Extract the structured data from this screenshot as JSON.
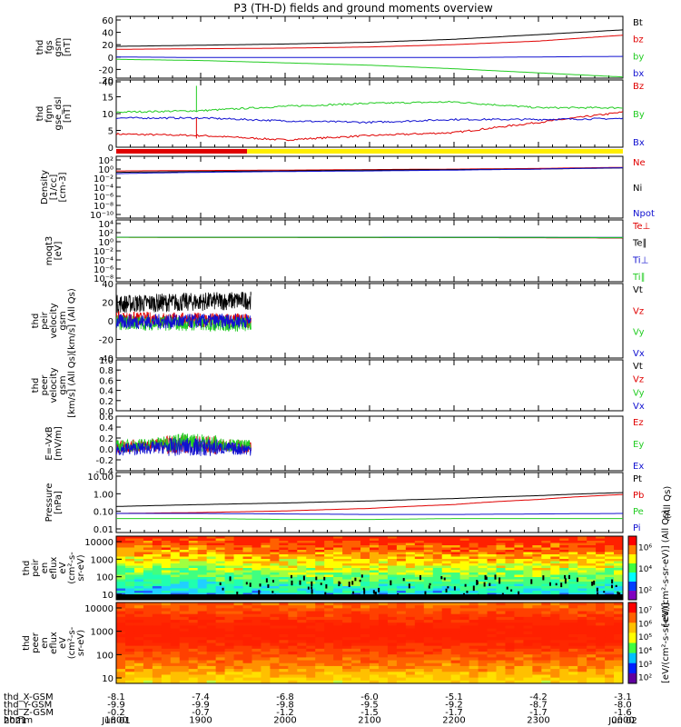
{
  "title": "P3 (TH-D) fields and ground moments overview",
  "colors": {
    "black": "#000000",
    "red": "#e00000",
    "green": "#22cc22",
    "blue": "#1010d0",
    "purple": "#8000c0",
    "yellow": "#ffee00"
  },
  "chart_data": [
    {
      "id": "fgs",
      "type": "line",
      "ylabel": [
        "thd",
        "fgs",
        "gsm",
        "[nT]"
      ],
      "yticks": [
        "60",
        "40",
        "20",
        "0",
        "-20",
        "-40"
      ],
      "ylim": [
        -40,
        65
      ],
      "series": [
        {
          "name": "Bt",
          "color": "black",
          "x": [
            18,
            19,
            20,
            21,
            22,
            23,
            24
          ],
          "y": [
            14,
            16,
            18,
            21,
            26,
            34,
            42
          ]
        },
        {
          "name": "bz",
          "color": "red",
          "x": [
            18,
            19,
            20,
            21,
            22,
            23,
            24
          ],
          "y": [
            9,
            10,
            11,
            13,
            17,
            23,
            33
          ]
        },
        {
          "name": "by",
          "color": "green",
          "x": [
            18,
            19,
            20,
            21,
            22,
            23,
            24
          ],
          "y": [
            -8,
            -10,
            -14,
            -18,
            -24,
            -31,
            -38
          ]
        },
        {
          "name": "bx",
          "color": "blue",
          "x": [
            18,
            19,
            20,
            21,
            22,
            23,
            24
          ],
          "y": [
            -4,
            -5,
            -5,
            -5,
            -5,
            -4,
            -3
          ]
        }
      ]
    },
    {
      "id": "fgm",
      "type": "line",
      "ylabel": [
        "thd",
        "fgm",
        "gse_dsl",
        "[nT]"
      ],
      "yticks": [
        "20",
        "15",
        "10",
        "5",
        "0"
      ],
      "ylim": [
        -3,
        20
      ],
      "series": [
        {
          "name": "Bz",
          "color": "red",
          "x": [
            18,
            19,
            20,
            21,
            22,
            23,
            24
          ],
          "y": [
            1.5,
            1,
            -0.5,
            1,
            2,
            5.5,
            9
          ]
        },
        {
          "name": "By",
          "color": "green",
          "x": [
            18,
            19,
            20,
            21,
            22,
            23,
            24
          ],
          "y": [
            9,
            9.5,
            11,
            12,
            12.5,
            10.5,
            10.5
          ]
        },
        {
          "name": "Bx",
          "color": "blue",
          "x": [
            18,
            19,
            20,
            21,
            22,
            23,
            24
          ],
          "y": [
            7,
            7,
            6,
            5.5,
            6.5,
            6.5,
            6.8
          ]
        }
      ]
    },
    {
      "id": "dens",
      "type": "line",
      "ylabel": [
        "Density",
        "[1/cc]",
        "[cm-3]"
      ],
      "yticks": [
        "10²",
        "10⁰",
        "10⁻²",
        "10⁻⁴",
        "10⁻⁶",
        "10⁻⁸",
        "10⁻¹⁰"
      ],
      "ylim": [
        -11,
        2.5
      ],
      "log": true,
      "series": [
        {
          "name": "Ne",
          "color": "red",
          "x": [
            18,
            19,
            20,
            21,
            22,
            23,
            24
          ],
          "y": [
            0.2,
            0.25,
            0.3,
            0.4,
            0.5,
            0.7,
            1.2
          ]
        },
        {
          "name": "Ni",
          "color": "black",
          "x": [
            18,
            19,
            20,
            21,
            22,
            23,
            24
          ],
          "y": [
            0.1,
            0.15,
            0.2,
            0.3,
            0.4,
            0.5,
            0.9
          ]
        },
        {
          "name": "Npot",
          "color": "blue",
          "x": [
            18,
            19,
            20,
            21,
            22,
            23,
            24
          ],
          "y": [
            0.05,
            0.1,
            0.15,
            0.2,
            0.3,
            0.5,
            1.0
          ]
        }
      ]
    },
    {
      "id": "temp",
      "type": "line",
      "ylabel": [
        "moqt3",
        "[eV]"
      ],
      "yticks": [
        "10⁴",
        "10²",
        "10⁰",
        "10⁻²",
        "10⁻⁴",
        "10⁻⁶",
        "10⁻⁸"
      ],
      "ylim": [
        -9,
        4.3
      ],
      "log": true,
      "series": [
        {
          "name": "Te⊥",
          "color": "red",
          "x": [
            18,
            19,
            20,
            21,
            22,
            23,
            24
          ],
          "y": [
            3.6,
            3.5,
            3.4,
            3.3,
            3.1,
            2.9,
            2.5
          ]
        },
        {
          "name": "Te∥",
          "color": "black",
          "x": [
            18,
            19,
            20,
            21,
            22,
            23,
            24
          ],
          "y": [
            3.8,
            3.7,
            3.6,
            3.5,
            3.4,
            3.2,
            2.9
          ]
        },
        {
          "name": "Ti⊥",
          "color": "blue",
          "x": [
            18,
            19,
            20,
            21,
            22,
            23,
            24
          ],
          "y": [
            3.9,
            3.9,
            3.8,
            3.8,
            3.7,
            3.6,
            3.4
          ]
        },
        {
          "name": "Ti∥",
          "color": "green",
          "x": [
            18,
            19,
            20,
            21,
            22,
            23,
            24
          ],
          "y": [
            3.7,
            3.7,
            3.6,
            3.6,
            3.5,
            3.4,
            3.2
          ]
        }
      ]
    },
    {
      "id": "vi",
      "type": "line",
      "ylabel": [
        "thd",
        "peir",
        "velocity",
        "gsm",
        "[km/s] (All Qs)"
      ],
      "yticks": [
        "40",
        "20",
        "0",
        "-20",
        "-40"
      ],
      "ylim": [
        -40,
        40
      ],
      "x_end": 19.6,
      "series": [
        {
          "name": "Vt",
          "color": "black",
          "x": [
            18,
            19.6
          ],
          "y": [
            18,
            22
          ]
        },
        {
          "name": "Vz",
          "color": "red",
          "x": [
            18,
            19.6
          ],
          "y": [
            2,
            0
          ]
        },
        {
          "name": "Vy",
          "color": "green",
          "x": [
            18,
            19.6
          ],
          "y": [
            -2,
            -4
          ]
        },
        {
          "name": "Vx",
          "color": "blue",
          "x": [
            18,
            19.6
          ],
          "y": [
            -1,
            0
          ]
        }
      ]
    },
    {
      "id": "ve",
      "type": "line",
      "ylabel": [
        "thd",
        "peer",
        "velocity",
        "gsm",
        "[km/s] (All Qs)"
      ],
      "yticks": [
        "1.0",
        "0.8",
        "0.6",
        "0.4",
        "0.2",
        "0.0"
      ],
      "ylim": [
        0,
        1
      ],
      "series": [
        {
          "name": "Vt",
          "color": "black"
        },
        {
          "name": "Vz",
          "color": "red"
        },
        {
          "name": "Vy",
          "color": "green"
        },
        {
          "name": "Vx",
          "color": "blue"
        }
      ]
    },
    {
      "id": "efield",
      "type": "line",
      "ylabel": [
        "E=-VxB",
        "[mV/m]"
      ],
      "yticks": [
        "0.6",
        "0.4",
        "0.2",
        "0.0",
        "-0.2",
        "-0.4"
      ],
      "ylim": [
        -0.4,
        0.62
      ],
      "x_end": 19.6,
      "series": [
        {
          "name": "Ez",
          "color": "red",
          "x": [
            18,
            18.8,
            19.6
          ],
          "y": [
            0.05,
            0.1,
            0.05
          ]
        },
        {
          "name": "Ey",
          "color": "green",
          "x": [
            18,
            18.8,
            19.6
          ],
          "y": [
            0.05,
            0.15,
            0.05
          ]
        },
        {
          "name": "Ex",
          "color": "blue",
          "x": [
            18,
            18.8,
            19.6
          ],
          "y": [
            0.0,
            0.05,
            0.0
          ]
        }
      ]
    },
    {
      "id": "press",
      "type": "line",
      "ylabel": [
        "Pressure",
        "[nPa]"
      ],
      "yticks": [
        "10.00",
        "1.00",
        "0.10",
        "0.01"
      ],
      "ylim": [
        -2,
        1
      ],
      "log": true,
      "series": [
        {
          "name": "Pt",
          "color": "black",
          "x": [
            18,
            19,
            20,
            21,
            22,
            23,
            24
          ],
          "y": [
            0.2,
            0.25,
            0.3,
            0.38,
            0.5,
            0.7,
            1.0
          ]
        },
        {
          "name": "Pb",
          "color": "red",
          "x": [
            18,
            19,
            20,
            21,
            22,
            23,
            24
          ],
          "y": [
            0.09,
            0.1,
            0.12,
            0.16,
            0.25,
            0.45,
            0.8
          ]
        },
        {
          "name": "Pe",
          "color": "green",
          "x": [
            18,
            19,
            20,
            21,
            22,
            23,
            24
          ],
          "y": [
            0.05,
            0.05,
            0.045,
            0.045,
            0.05,
            0.05,
            0.05
          ]
        },
        {
          "name": "Pi",
          "color": "blue",
          "x": [
            18,
            19,
            20,
            21,
            22,
            23,
            24
          ],
          "y": [
            0.09,
            0.09,
            0.085,
            0.08,
            0.08,
            0.085,
            0.09
          ]
        }
      ],
      "side_label": "(All Qs)"
    },
    {
      "id": "ispec",
      "type": "heatmap",
      "ylabel": [
        "thd",
        "peir",
        "en",
        "eflux",
        "eV",
        "(cm²-s-",
        "sr-eV)"
      ],
      "yticks": [
        "10000",
        "1000",
        "100",
        "10"
      ],
      "colorbar": {
        "ticks": [
          "10⁶",
          "10⁴",
          "10²"
        ],
        "label": "[eV/(cm²-s-sr-eV)] (All Qs)"
      }
    },
    {
      "id": "espec",
      "type": "heatmap",
      "ylabel": [
        "thd",
        "peer",
        "en",
        "eflux",
        "eV",
        "(cm²-s-",
        "sr-eV)"
      ],
      "yticks": [
        "10000",
        "1000",
        "100",
        "10"
      ],
      "colorbar": {
        "ticks": [
          "10⁷",
          "10⁶",
          "10⁵",
          "10⁴",
          "10³",
          "10²"
        ],
        "label": "[eV/(cm²-s-sr-eV)]"
      }
    }
  ],
  "xaxis": {
    "rows": [
      {
        "name": "thd_X-GSM",
        "values": [
          "-8.1",
          "-7.4",
          "-6.8",
          "-6.0",
          "-5.1",
          "-4.2",
          "-3.1"
        ]
      },
      {
        "name": "thd_Y-GSM",
        "values": [
          "-9.9",
          "-9.9",
          "-9.8",
          "-9.5",
          "-9.2",
          "-8.7",
          "-8.0"
        ]
      },
      {
        "name": "thd_Z-GSM",
        "values": [
          "-0.2",
          "-0.7",
          "-1.2",
          "-1.5",
          "-1.7",
          "-1.7",
          "-1.6"
        ]
      },
      {
        "name": "hhmm",
        "values": [
          "1800",
          "1900",
          "2000",
          "2100",
          "2200",
          "2300",
          "0000"
        ]
      }
    ],
    "year": "2021",
    "date_start": "Jun 01",
    "date_end": "Jun 02"
  }
}
